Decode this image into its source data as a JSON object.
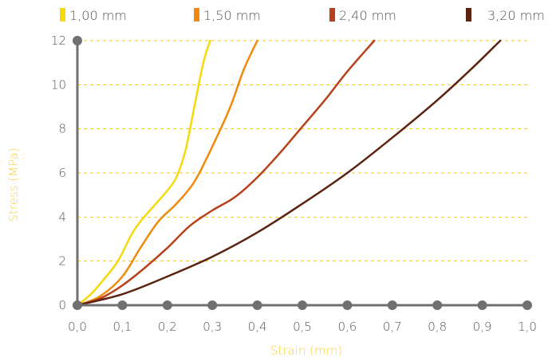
{
  "chart_data": {
    "type": "line",
    "xlabel": "Strain (mm)",
    "ylabel": "Stress (MPa)",
    "xlim": [
      0,
      1
    ],
    "ylim": [
      0,
      12
    ],
    "x_ticks": [
      "0,0",
      "0,1",
      "0,2",
      "0,3",
      "0,4",
      "0,5",
      "0,6",
      "0,7",
      "0,8",
      "0,9",
      "1,0"
    ],
    "y_ticks": [
      "0",
      "2",
      "4",
      "6",
      "8",
      "10",
      "12"
    ],
    "grid": "horizontal dashed",
    "legend_position": "top",
    "series": [
      {
        "name": "1,00 mm",
        "color": "#f5d90a",
        "points": [
          [
            0,
            0
          ],
          [
            0.03,
            0.5
          ],
          [
            0.06,
            1.2
          ],
          [
            0.09,
            2.0
          ],
          [
            0.12,
            3.2
          ],
          [
            0.14,
            3.8
          ],
          [
            0.17,
            4.5
          ],
          [
            0.2,
            5.2
          ],
          [
            0.22,
            5.8
          ],
          [
            0.24,
            7.0
          ],
          [
            0.26,
            9.0
          ],
          [
            0.28,
            11.0
          ],
          [
            0.295,
            12.0
          ]
        ]
      },
      {
        "name": "1,50 mm",
        "color": "#f08a0c",
        "points": [
          [
            0,
            0
          ],
          [
            0.05,
            0.4
          ],
          [
            0.1,
            1.3
          ],
          [
            0.14,
            2.6
          ],
          [
            0.18,
            3.8
          ],
          [
            0.22,
            4.6
          ],
          [
            0.26,
            5.6
          ],
          [
            0.3,
            7.2
          ],
          [
            0.34,
            9.0
          ],
          [
            0.37,
            10.7
          ],
          [
            0.4,
            12.0
          ]
        ]
      },
      {
        "name": "2,40 mm",
        "color": "#b8401a",
        "points": [
          [
            0,
            0
          ],
          [
            0.05,
            0.3
          ],
          [
            0.1,
            0.9
          ],
          [
            0.15,
            1.7
          ],
          [
            0.2,
            2.6
          ],
          [
            0.25,
            3.6
          ],
          [
            0.3,
            4.3
          ],
          [
            0.35,
            4.9
          ],
          [
            0.4,
            5.8
          ],
          [
            0.45,
            6.9
          ],
          [
            0.5,
            8.1
          ],
          [
            0.55,
            9.3
          ],
          [
            0.6,
            10.6
          ],
          [
            0.66,
            12.0
          ]
        ]
      },
      {
        "name": "3,20 mm",
        "color": "#5b2410",
        "points": [
          [
            0,
            0
          ],
          [
            0.1,
            0.5
          ],
          [
            0.2,
            1.3
          ],
          [
            0.3,
            2.2
          ],
          [
            0.4,
            3.3
          ],
          [
            0.5,
            4.6
          ],
          [
            0.6,
            6.0
          ],
          [
            0.7,
            7.6
          ],
          [
            0.8,
            9.3
          ],
          [
            0.88,
            10.8
          ],
          [
            0.94,
            12.0
          ]
        ]
      }
    ]
  },
  "colors": {
    "axis": "#707070",
    "grid": "#f0c419",
    "axis_title": "#f7d23a"
  }
}
